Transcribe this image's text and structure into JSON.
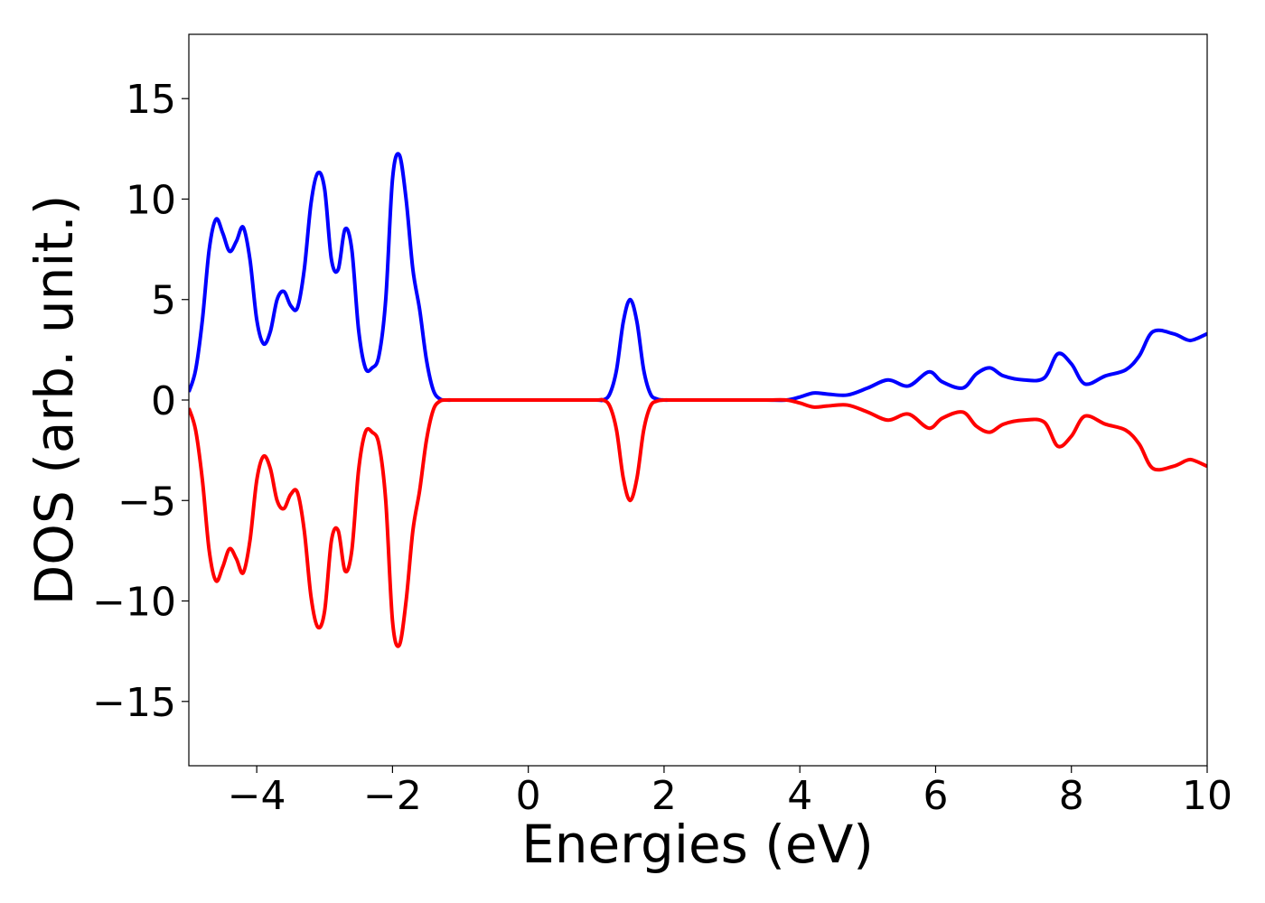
{
  "chart_data": {
    "type": "line",
    "title": "",
    "xlabel": "Energies (eV)",
    "ylabel": "DOS (arb. unit.)",
    "xlim": [
      -5,
      10
    ],
    "ylim": [
      -18.2,
      18.2
    ],
    "grid": false,
    "legend": "none",
    "x_ticks": [
      {
        "value": -4,
        "label": "−4"
      },
      {
        "value": -2,
        "label": "−2"
      },
      {
        "value": 0,
        "label": "0"
      },
      {
        "value": 2,
        "label": "2"
      },
      {
        "value": 4,
        "label": "4"
      },
      {
        "value": 6,
        "label": "6"
      },
      {
        "value": 8,
        "label": "8"
      },
      {
        "value": 10,
        "label": "10"
      }
    ],
    "y_ticks": [
      {
        "value": 15,
        "label": "15"
      },
      {
        "value": 10,
        "label": "10"
      },
      {
        "value": 5,
        "label": "5"
      },
      {
        "value": 0,
        "label": "0"
      },
      {
        "value": -5,
        "label": "−5"
      },
      {
        "value": -10,
        "label": "−10"
      },
      {
        "value": -15,
        "label": "−15"
      }
    ],
    "series": [
      {
        "color": "#0000ff",
        "x": [
          -5.0,
          -4.9,
          -4.8,
          -4.7,
          -4.6,
          -4.5,
          -4.4,
          -4.3,
          -4.2,
          -4.1,
          -4.0,
          -3.9,
          -3.8,
          -3.7,
          -3.6,
          -3.5,
          -3.4,
          -3.3,
          -3.2,
          -3.1,
          -3.0,
          -2.9,
          -2.8,
          -2.7,
          -2.6,
          -2.5,
          -2.4,
          -2.3,
          -2.2,
          -2.1,
          -2.0,
          -1.9,
          -1.8,
          -1.7,
          -1.6,
          -1.5,
          -1.4,
          -1.3,
          -1.2,
          -1.1,
          -1.0,
          -0.9,
          -0.8,
          -0.7,
          -0.6,
          -0.5,
          0.0,
          0.5,
          1.0,
          1.1,
          1.2,
          1.3,
          1.4,
          1.5,
          1.6,
          1.7,
          1.8,
          1.9,
          2.0,
          2.1,
          2.2,
          2.5,
          3.0,
          3.5,
          3.8,
          4.0,
          4.2,
          4.4,
          4.7,
          5.0,
          5.3,
          5.6,
          5.9,
          6.1,
          6.4,
          6.6,
          6.8,
          7.0,
          7.3,
          7.6,
          7.8,
          8.0,
          8.2,
          8.5,
          8.8,
          9.0,
          9.2,
          9.5,
          9.7,
          9.8,
          10.0
        ],
        "y": [
          0.4,
          1.5,
          4.0,
          7.5,
          9.0,
          8.3,
          7.4,
          7.9,
          8.6,
          7.0,
          4.0,
          2.8,
          3.4,
          5.0,
          5.4,
          4.7,
          4.6,
          6.5,
          9.8,
          11.3,
          10.5,
          7.0,
          6.5,
          8.5,
          7.5,
          3.5,
          1.6,
          1.6,
          2.2,
          5.0,
          11.0,
          12.2,
          10.0,
          6.5,
          4.5,
          2.0,
          0.5,
          0.05,
          0.0,
          0.0,
          0.0,
          0.0,
          0.0,
          0.0,
          0.0,
          0.0,
          0.0,
          0.0,
          0.0,
          0.0,
          0.3,
          1.5,
          3.9,
          5.0,
          3.9,
          1.5,
          0.3,
          0.05,
          0.0,
          0.0,
          0.0,
          0.0,
          0.0,
          0.0,
          0.0,
          0.15,
          0.35,
          0.3,
          0.25,
          0.6,
          1.0,
          0.7,
          1.4,
          0.9,
          0.6,
          1.3,
          1.6,
          1.2,
          1.0,
          1.1,
          2.3,
          1.8,
          0.8,
          1.2,
          1.5,
          2.2,
          3.4,
          3.3,
          3.0,
          3.0,
          3.3
        ]
      },
      {
        "color": "#ff0000",
        "x": [
          -5.0,
          -4.9,
          -4.8,
          -4.7,
          -4.6,
          -4.5,
          -4.4,
          -4.3,
          -4.2,
          -4.1,
          -4.0,
          -3.9,
          -3.8,
          -3.7,
          -3.6,
          -3.5,
          -3.4,
          -3.3,
          -3.2,
          -3.1,
          -3.0,
          -2.9,
          -2.8,
          -2.7,
          -2.6,
          -2.5,
          -2.4,
          -2.3,
          -2.2,
          -2.1,
          -2.0,
          -1.9,
          -1.8,
          -1.7,
          -1.6,
          -1.5,
          -1.4,
          -1.3,
          -1.2,
          -1.1,
          -1.0,
          -0.9,
          -0.8,
          -0.7,
          -0.6,
          -0.5,
          0.0,
          0.5,
          1.0,
          1.1,
          1.2,
          1.3,
          1.4,
          1.5,
          1.6,
          1.7,
          1.8,
          1.9,
          2.0,
          2.1,
          2.2,
          2.5,
          3.0,
          3.5,
          3.8,
          4.0,
          4.2,
          4.4,
          4.7,
          5.0,
          5.3,
          5.6,
          5.9,
          6.1,
          6.4,
          6.6,
          6.8,
          7.0,
          7.3,
          7.6,
          7.8,
          8.0,
          8.2,
          8.5,
          8.8,
          9.0,
          9.2,
          9.5,
          9.7,
          9.8,
          10.0
        ],
        "y": [
          -0.4,
          -1.5,
          -4.0,
          -7.5,
          -9.0,
          -8.3,
          -7.4,
          -7.9,
          -8.6,
          -7.0,
          -4.0,
          -2.8,
          -3.4,
          -5.0,
          -5.4,
          -4.7,
          -4.6,
          -6.5,
          -9.8,
          -11.3,
          -10.5,
          -7.0,
          -6.5,
          -8.5,
          -7.5,
          -3.5,
          -1.6,
          -1.6,
          -2.2,
          -5.0,
          -11.0,
          -12.2,
          -10.0,
          -6.5,
          -4.5,
          -2.0,
          -0.5,
          -0.05,
          0.0,
          0.0,
          0.0,
          0.0,
          0.0,
          0.0,
          0.0,
          0.0,
          0.0,
          0.0,
          0.0,
          0.0,
          -0.3,
          -1.5,
          -3.9,
          -5.0,
          -3.9,
          -1.5,
          -0.3,
          -0.05,
          0.0,
          0.0,
          0.0,
          0.0,
          0.0,
          0.0,
          0.0,
          -0.15,
          -0.35,
          -0.3,
          -0.25,
          -0.6,
          -1.0,
          -0.7,
          -1.4,
          -0.9,
          -0.6,
          -1.3,
          -1.6,
          -1.2,
          -1.0,
          -1.1,
          -2.3,
          -1.8,
          -0.8,
          -1.2,
          -1.5,
          -2.2,
          -3.4,
          -3.3,
          -3.0,
          -3.0,
          -3.3
        ]
      }
    ]
  }
}
